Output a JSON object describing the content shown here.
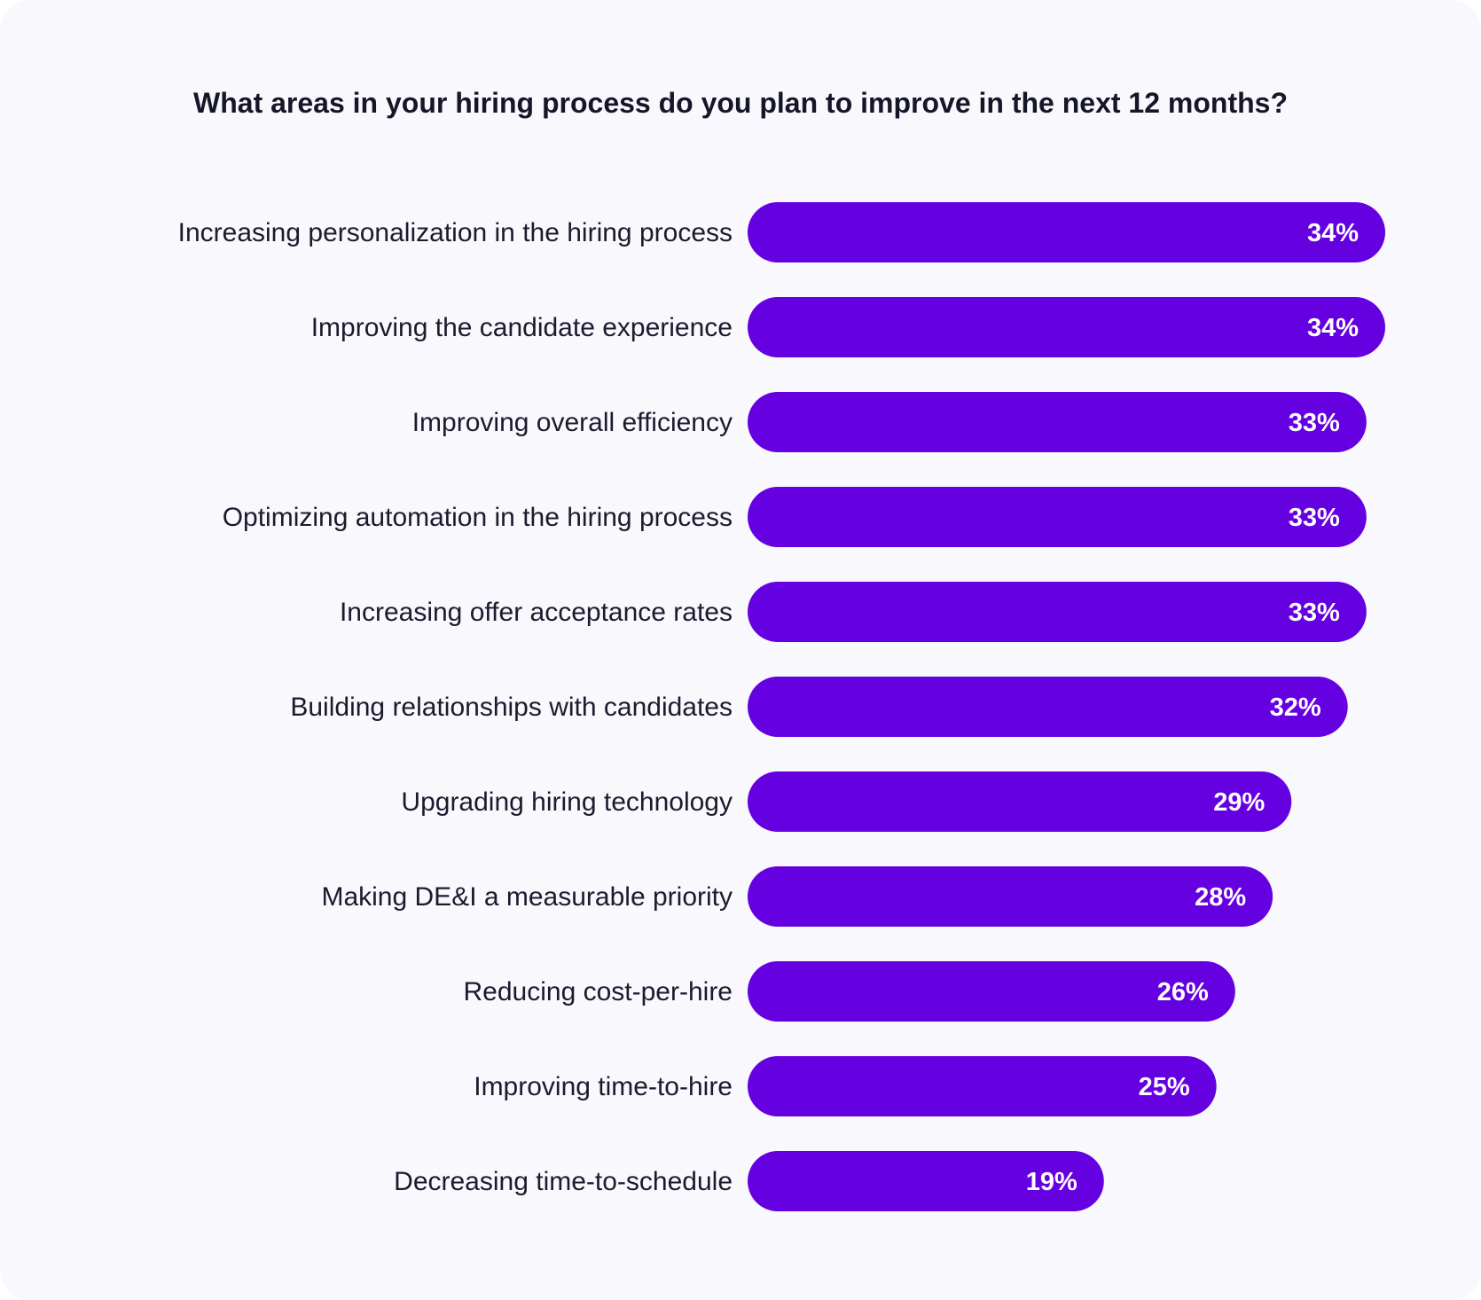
{
  "colors": {
    "bar": "#6500e0",
    "background": "#f8f8fd",
    "text": "#1b1b2e"
  },
  "chart_data": {
    "type": "bar",
    "orientation": "horizontal",
    "title": "What areas in your hiring process do you plan to improve in the next 12 months?",
    "xlabel": "",
    "ylabel": "",
    "grid": false,
    "xlim": [
      0,
      34
    ],
    "value_suffix": "%",
    "categories": [
      "Increasing personalization in the hiring process",
      "Improving the candidate experience",
      "Improving overall efficiency",
      "Optimizing automation in the hiring process",
      "Increasing offer acceptance rates",
      "Building relationships with candidates",
      "Upgrading hiring technology",
      "Making DE&I a measurable priority",
      "Reducing cost-per-hire",
      "Improving time-to-hire",
      "Decreasing time-to-schedule"
    ],
    "values": [
      34,
      34,
      33,
      33,
      33,
      32,
      29,
      28,
      26,
      25,
      19
    ]
  }
}
